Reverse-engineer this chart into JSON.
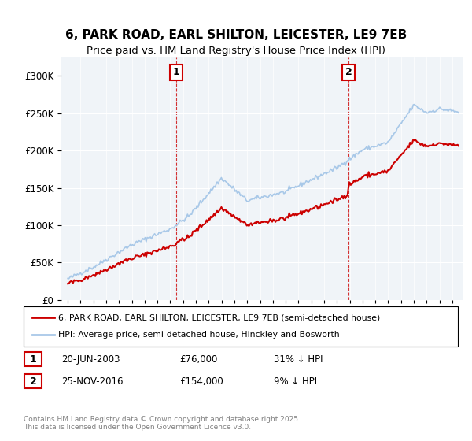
{
  "title_line1": "6, PARK ROAD, EARL SHILTON, LEICESTER, LE9 7EB",
  "title_line2": "Price paid vs. HM Land Registry's House Price Index (HPI)",
  "ylabel": "",
  "sale1_date": "20-JUN-2003",
  "sale1_price": 76000,
  "sale1_label": "1",
  "sale1_pct": "31% ↓ HPI",
  "sale2_date": "25-NOV-2016",
  "sale2_price": 154000,
  "sale2_label": "2",
  "sale2_pct": "9% ↓ HPI",
  "legend_line1": "6, PARK ROAD, EARL SHILTON, LEICESTER, LE9 7EB (semi-detached house)",
  "legend_line2": "HPI: Average price, semi-detached house, Hinckley and Bosworth",
  "footnote": "Contains HM Land Registry data © Crown copyright and database right 2025.\nThis data is licensed under the Open Government Licence v3.0.",
  "hpi_color": "#a8c8e8",
  "sale_color": "#cc0000",
  "ylim_max": 325000,
  "background_color": "#f0f4f8"
}
